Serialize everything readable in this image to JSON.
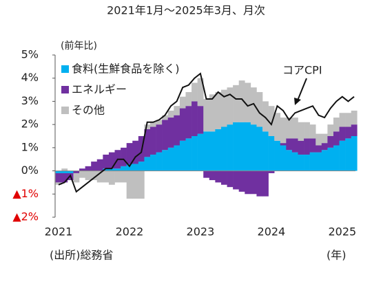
{
  "chart_data": {
    "type": "stacked_bar_line",
    "title": "2021年1月～2025年3月、月次",
    "y_axis_label": "(前年比)",
    "x_axis_label": "(年)",
    "source": "(出所)総務省",
    "annotation": "コアCPI",
    "categories": [
      "2021",
      null,
      null,
      null,
      null,
      null,
      null,
      null,
      null,
      null,
      null,
      null,
      "2022",
      null,
      null,
      null,
      null,
      null,
      null,
      null,
      null,
      null,
      null,
      null,
      "2023",
      null,
      null,
      null,
      null,
      null,
      null,
      null,
      null,
      null,
      null,
      null,
      "2024",
      null,
      null,
      null,
      null,
      null,
      null,
      null,
      null,
      null,
      null,
      null,
      "2025",
      null,
      null
    ],
    "series": [
      {
        "name": "食料(生鮮食品を除く)",
        "color": "#00b0f0",
        "values": [
          -0.1,
          -0.1,
          -0.1,
          0.0,
          0.0,
          0.0,
          0.0,
          0.0,
          0.1,
          0.1,
          0.1,
          0.2,
          0.3,
          0.3,
          0.4,
          0.6,
          0.7,
          0.8,
          0.9,
          1.0,
          1.1,
          1.3,
          1.4,
          1.5,
          1.6,
          1.7,
          1.7,
          1.8,
          1.9,
          2.0,
          2.1,
          2.1,
          2.1,
          2.0,
          1.9,
          1.7,
          1.5,
          1.3,
          1.1,
          0.9,
          0.8,
          0.7,
          0.7,
          0.8,
          0.8,
          0.9,
          1.0,
          1.1,
          1.3,
          1.4,
          1.5
        ]
      },
      {
        "name": "エネルギー",
        "color": "#7030a0",
        "values": [
          -0.4,
          -0.4,
          -0.3,
          -0.1,
          0.1,
          0.2,
          0.4,
          0.5,
          0.6,
          0.7,
          0.8,
          0.8,
          0.9,
          1.0,
          1.1,
          1.2,
          1.2,
          1.2,
          1.3,
          1.3,
          1.3,
          1.4,
          1.4,
          1.5,
          1.2,
          -0.3,
          -0.4,
          -0.5,
          -0.6,
          -0.7,
          -0.8,
          -0.9,
          -1.0,
          -1.0,
          -1.1,
          -1.1,
          -0.1,
          0.0,
          0.1,
          0.5,
          0.6,
          0.6,
          0.7,
          0.6,
          0.3,
          0.3,
          0.5,
          0.6,
          0.6,
          0.5,
          0.5
        ]
      },
      {
        "name": "その他",
        "color": "#bfbfbf",
        "values": [
          -0.1,
          0.1,
          0.0,
          -0.4,
          -0.3,
          -0.4,
          -0.4,
          -0.5,
          -0.5,
          -0.6,
          -0.5,
          -0.5,
          -1.2,
          -1.2,
          -1.2,
          0.2,
          0.2,
          0.2,
          0.2,
          0.3,
          0.4,
          0.5,
          0.6,
          0.8,
          1.2,
          1.4,
          1.6,
          1.6,
          1.6,
          1.6,
          1.6,
          1.8,
          1.7,
          1.6,
          1.5,
          1.3,
          1.3,
          1.2,
          1.1,
          0.9,
          0.9,
          0.8,
          0.7,
          0.6,
          0.5,
          0.4,
          0.5,
          0.6,
          0.6,
          0.6,
          0.6
        ]
      }
    ],
    "line": {
      "color": "#111111",
      "values": [
        -0.6,
        -0.5,
        -0.2,
        -0.9,
        -0.7,
        -0.5,
        -0.3,
        -0.1,
        0.1,
        0.1,
        0.5,
        0.5,
        0.2,
        0.6,
        0.8,
        2.1,
        2.1,
        2.2,
        2.4,
        2.8,
        3.0,
        3.6,
        3.7,
        4.0,
        4.2,
        3.1,
        3.1,
        3.4,
        3.2,
        3.3,
        3.1,
        3.1,
        2.8,
        2.9,
        2.5,
        2.3,
        2.0,
        2.8,
        2.6,
        2.2,
        2.5,
        2.6,
        2.7,
        2.8,
        2.4,
        2.3,
        2.7,
        3.0,
        3.2,
        3.0,
        3.2
      ]
    },
    "ylim": [
      -2,
      5
    ],
    "yticks": [
      {
        "value": 5,
        "label": "5%"
      },
      {
        "value": 4,
        "label": "4%"
      },
      {
        "value": 3,
        "label": "3%"
      },
      {
        "value": 2,
        "label": "2%"
      },
      {
        "value": 1,
        "label": "1%"
      },
      {
        "value": 0,
        "label": "0%"
      },
      {
        "value": -1,
        "label": "▲1%"
      },
      {
        "value": -2,
        "label": "▲2%"
      }
    ],
    "legend": "upper left",
    "grid": false
  }
}
